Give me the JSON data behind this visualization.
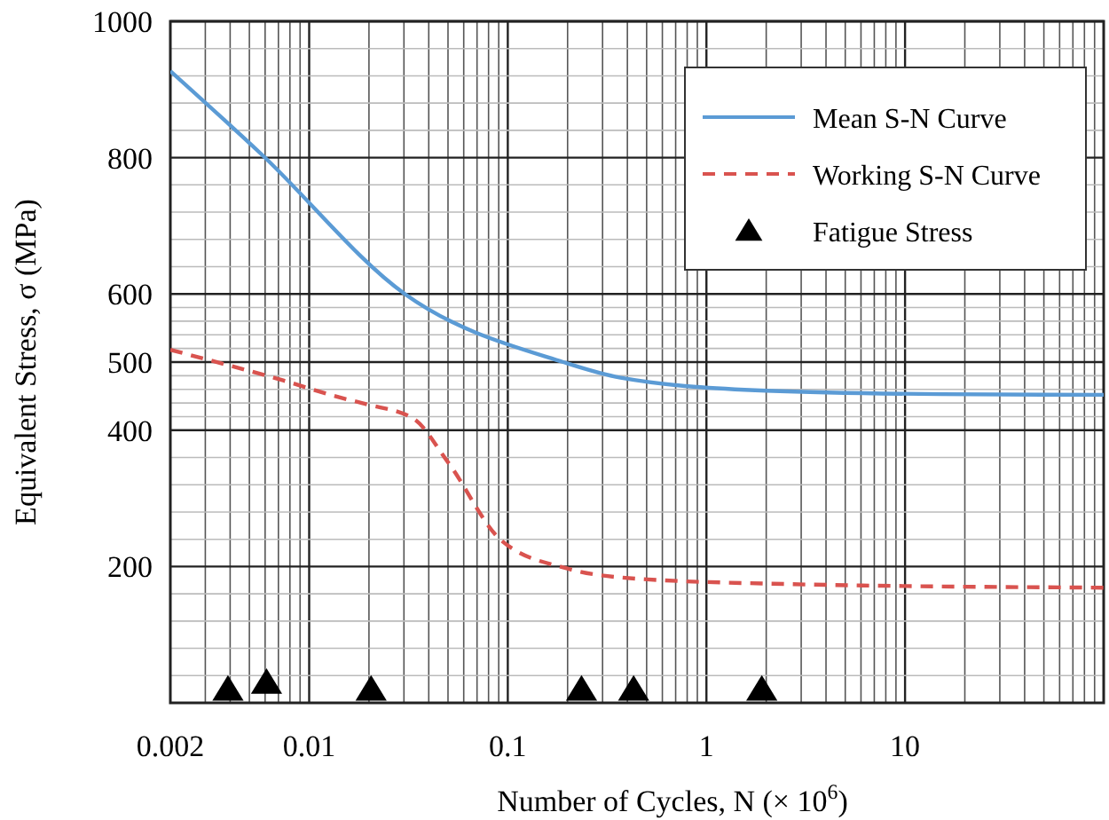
{
  "chart_data": {
    "type": "line",
    "xlabel": "Number  of  Cycles,  N (× 10$^{6}$)",
    "ylabel": "Equivalent Stress,  σ (MPa)",
    "log": "x",
    "xlim": [
      0.002,
      100
    ],
    "xticks": [
      0.002,
      0.01,
      0.1,
      1,
      10
    ],
    "ylim": [
      0,
      1000
    ],
    "yticks": [
      200,
      400,
      500,
      600,
      800,
      1000
    ],
    "grid": true,
    "legend": "top right",
    "series": [
      {
        "name": "Mean  S-N  Curve",
        "color": "#5b9bd5",
        "line_style": "solid",
        "x": [
          0.002,
          0.0057,
          0.0303,
          0.19,
          0.37,
          2,
          15,
          100
        ],
        "values": [
          927,
          806,
          600,
          500,
          477,
          458,
          453,
          452
        ]
      },
      {
        "name": "Working  S-N  Curve",
        "color": "#d9534f",
        "line_style": "dashed",
        "x": [
          0.002,
          0.0074,
          0.0147,
          0.0195,
          0.0335,
          0.05,
          0.093,
          0.2,
          0.37,
          2,
          100
        ],
        "values": [
          518,
          473,
          447,
          438,
          417,
          353,
          238,
          197,
          184,
          175,
          169
        ]
      },
      {
        "name": "Fatigue  Stress",
        "type": "scatter",
        "marker": "triangle",
        "color": "#000000",
        "x": [
          0.0039,
          0.0061,
          0.0205,
          0.235,
          0.43,
          1.9
        ],
        "values": [
          20,
          30,
          20,
          20,
          20,
          20
        ]
      }
    ]
  }
}
